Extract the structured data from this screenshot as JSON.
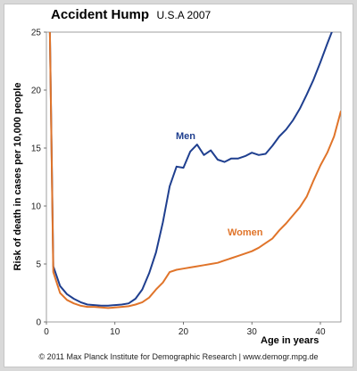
{
  "title": "Accident Hump",
  "subtitle": "U.S.A 2007",
  "credit": "© 2011 Max Planck Institute for Demographic Research | www.demogr.mpg.de",
  "chart_data": {
    "type": "line",
    "xlabel": "Age in years",
    "ylabel": "Risk of death in cases per 10,000 people",
    "xlim": [
      0,
      43
    ],
    "ylim": [
      0,
      25
    ],
    "xticks": [
      0,
      10,
      20,
      30,
      40
    ],
    "yticks": [
      0,
      5,
      10,
      15,
      20,
      25
    ],
    "grid": false,
    "series": [
      {
        "name": "Men",
        "color": "#1f3f8f",
        "x": [
          0.5,
          1,
          2,
          3,
          4,
          5,
          6,
          7,
          8,
          9,
          10,
          11,
          12,
          13,
          14,
          15,
          16,
          17,
          18,
          19,
          20,
          21,
          22,
          23,
          24,
          25,
          26,
          27,
          28,
          29,
          30,
          31,
          32,
          33,
          34,
          35,
          36,
          37,
          38,
          39,
          40,
          41,
          42,
          43
        ],
        "values": [
          25.5,
          4.8,
          3.1,
          2.4,
          2.0,
          1.7,
          1.5,
          1.45,
          1.4,
          1.4,
          1.45,
          1.5,
          1.6,
          2.0,
          2.8,
          4.2,
          6.0,
          8.6,
          11.7,
          13.4,
          13.3,
          14.7,
          15.3,
          14.4,
          14.8,
          14.0,
          13.8,
          14.1,
          14.1,
          14.3,
          14.6,
          14.4,
          14.5,
          15.2,
          16.0,
          16.6,
          17.4,
          18.4,
          19.6,
          20.9,
          22.4,
          24.0,
          25.5,
          26.8
        ]
      },
      {
        "name": "Women",
        "color": "#e0742a",
        "x": [
          0.5,
          1,
          2,
          3,
          4,
          5,
          6,
          7,
          8,
          9,
          10,
          11,
          12,
          13,
          14,
          15,
          16,
          17,
          18,
          19,
          20,
          21,
          22,
          23,
          24,
          25,
          26,
          27,
          28,
          29,
          30,
          31,
          32,
          33,
          34,
          35,
          36,
          37,
          38,
          39,
          40,
          41,
          42,
          43
        ],
        "values": [
          25.5,
          4.3,
          2.5,
          1.9,
          1.6,
          1.4,
          1.3,
          1.3,
          1.25,
          1.2,
          1.25,
          1.3,
          1.35,
          1.5,
          1.7,
          2.1,
          2.8,
          3.4,
          4.3,
          4.5,
          4.6,
          4.7,
          4.8,
          4.9,
          5.0,
          5.1,
          5.3,
          5.5,
          5.7,
          5.9,
          6.1,
          6.4,
          6.8,
          7.2,
          7.9,
          8.5,
          9.2,
          9.9,
          10.8,
          12.2,
          13.5,
          14.6,
          16.0,
          18.2
        ]
      }
    ]
  }
}
